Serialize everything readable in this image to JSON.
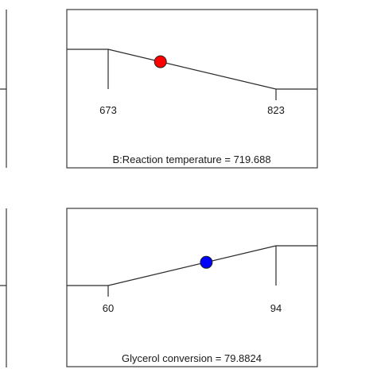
{
  "chart_data": [
    {
      "type": "line",
      "factor_label": "B:Reaction temperature",
      "current_value": "719.688",
      "value": 719.688,
      "low": 673,
      "high": 823,
      "tick_labels": [
        "673",
        "823"
      ],
      "marker_color": "#ff0000"
    },
    {
      "type": "line",
      "factor_label": "Glycerol conversion",
      "current_value": "79.8824",
      "value": 79.8824,
      "low": 60,
      "high": 94,
      "tick_labels": [
        "60",
        "94"
      ],
      "marker_color": "#0000ff"
    }
  ]
}
